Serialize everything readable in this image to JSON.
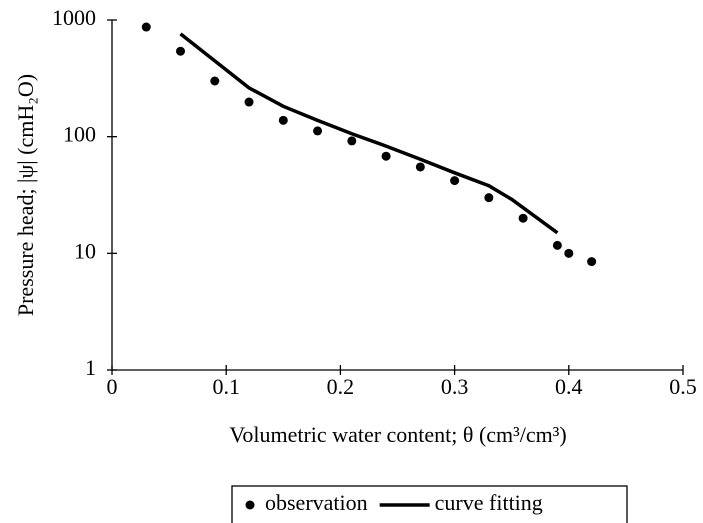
{
  "chart_data": {
    "type": "scatter",
    "x_label": "Volumetric water content; θ (cm³/cm³)",
    "y_label": "Pressure head; |ψ| (cmH₂O)",
    "xlim": [
      0,
      0.5
    ],
    "xticks": [
      0,
      0.1,
      0.2,
      0.3,
      0.4,
      0.5
    ],
    "ylim": [
      1,
      1000
    ],
    "yticks": [
      1,
      10,
      100,
      1000
    ],
    "y_scale": "log",
    "grid": false,
    "legend": "bottom",
    "series": [
      {
        "name": "observation",
        "type": "scatter",
        "color": "#000000",
        "x": [
          0.03,
          0.06,
          0.09,
          0.12,
          0.15,
          0.18,
          0.21,
          0.24,
          0.27,
          0.3,
          0.33,
          0.36,
          0.39,
          0.4,
          0.42
        ],
        "values": [
          870,
          540,
          300,
          198,
          138,
          112,
          92,
          68,
          55,
          42,
          30,
          20,
          11.7,
          10,
          8.5
        ]
      },
      {
        "name": "curve fitting",
        "type": "line",
        "color": "#000000",
        "x": [
          0.06,
          0.12,
          0.15,
          0.18,
          0.21,
          0.24,
          0.27,
          0.3,
          0.33,
          0.35,
          0.39
        ],
        "values": [
          760,
          262,
          182,
          138,
          106,
          83,
          64,
          49,
          38,
          29,
          15
        ]
      }
    ]
  }
}
